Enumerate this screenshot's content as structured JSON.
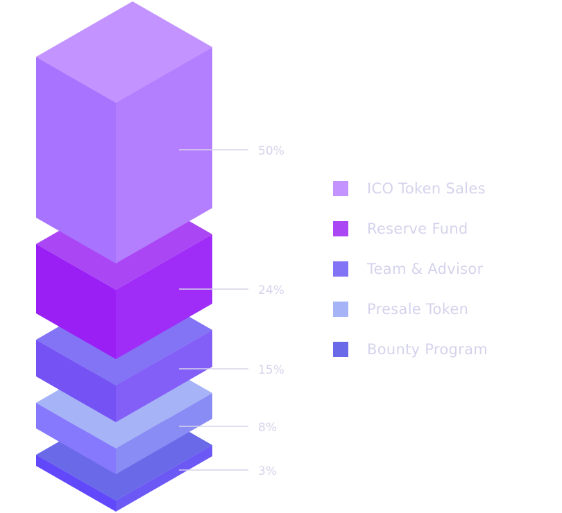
{
  "chart_data": {
    "type": "isometric-stacked-bar",
    "categories": [
      "ICO Token Sales",
      "Reserve Fund",
      "Team & Advisor",
      "Presale Token",
      "Bounty Program"
    ],
    "values": [
      50,
      24,
      15,
      8,
      3
    ],
    "value_labels": [
      "50%",
      "24%",
      "15%",
      "8%",
      "3%"
    ],
    "legend_position": "right",
    "colors": [
      "#c393ff",
      "#ab46f5",
      "#8373f5",
      "#a6b3f7",
      "#6a6ae8"
    ],
    "face_colors": [
      {
        "top": "#c393ff",
        "left": "#a874ff",
        "right": "#b47fff"
      },
      {
        "top": "#ab46f5",
        "left": "#9a1ff5",
        "right": "#a02df7"
      },
      {
        "top": "#8373f5",
        "left": "#7552f3",
        "right": "#835ef7"
      },
      {
        "top": "#a6b3f7",
        "left": "#8779fd",
        "right": "#8a8cf5"
      },
      {
        "top": "#6a6ae8",
        "left": "#6248fb",
        "right": "#6b58f5"
      }
    ]
  }
}
